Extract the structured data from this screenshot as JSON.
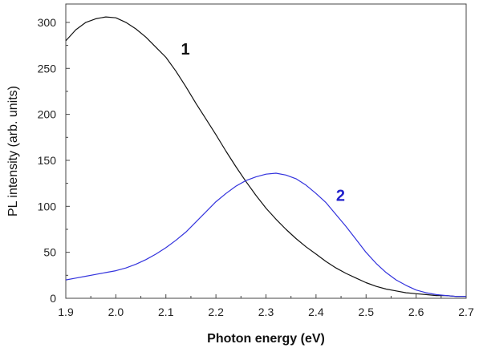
{
  "chart_data": {
    "type": "line",
    "xlabel": "Photon energy (eV)",
    "ylabel": "PL intensity (arb. units)",
    "xlim": [
      1.9,
      2.7
    ],
    "ylim": [
      0,
      320
    ],
    "xticks": [
      "1.9",
      "2.0",
      "2.1",
      "2.2",
      "2.3",
      "2.4",
      "2.5",
      "2.6",
      "2.7"
    ],
    "yticks": [
      "0",
      "50",
      "100",
      "150",
      "200",
      "250",
      "300"
    ],
    "grid": false,
    "series": [
      {
        "name": "1",
        "color": "#111111",
        "x": [
          1.9,
          1.92,
          1.94,
          1.96,
          1.98,
          2.0,
          2.02,
          2.04,
          2.06,
          2.08,
          2.1,
          2.12,
          2.14,
          2.16,
          2.18,
          2.2,
          2.22,
          2.24,
          2.26,
          2.28,
          2.3,
          2.32,
          2.34,
          2.36,
          2.38,
          2.4,
          2.42,
          2.44,
          2.46,
          2.48,
          2.5,
          2.52,
          2.54,
          2.56,
          2.58,
          2.6,
          2.62,
          2.64,
          2.66,
          2.68,
          2.7
        ],
        "y": [
          280,
          292,
          300,
          304,
          306,
          305,
          300,
          293,
          284,
          273,
          262,
          247,
          230,
          212,
          195,
          178,
          160,
          143,
          127,
          112,
          98,
          86,
          75,
          65,
          56,
          48,
          40,
          33,
          27,
          22,
          17,
          13,
          10,
          8,
          6,
          5,
          4,
          3,
          3,
          2,
          2
        ]
      },
      {
        "name": "2",
        "color": "#3333dd",
        "x": [
          1.9,
          1.92,
          1.94,
          1.96,
          1.98,
          2.0,
          2.02,
          2.04,
          2.06,
          2.08,
          2.1,
          2.12,
          2.14,
          2.16,
          2.18,
          2.2,
          2.22,
          2.24,
          2.26,
          2.28,
          2.3,
          2.32,
          2.34,
          2.36,
          2.38,
          2.4,
          2.42,
          2.44,
          2.46,
          2.48,
          2.5,
          2.52,
          2.54,
          2.56,
          2.58,
          2.6,
          2.62,
          2.64,
          2.66,
          2.68,
          2.7
        ],
        "y": [
          20,
          22,
          24,
          26,
          28,
          30,
          33,
          37,
          42,
          48,
          55,
          63,
          72,
          83,
          94,
          105,
          114,
          122,
          128,
          132,
          135,
          136,
          134,
          130,
          123,
          114,
          104,
          91,
          78,
          64,
          50,
          38,
          28,
          20,
          14,
          9,
          6,
          4,
          3,
          2,
          2
        ]
      }
    ],
    "annotations": [
      {
        "text": "1",
        "x": 2.13,
        "y": 265,
        "color": "#111111"
      },
      {
        "text": "2",
        "x": 2.44,
        "y": 106,
        "color": "#2222cc"
      }
    ]
  }
}
